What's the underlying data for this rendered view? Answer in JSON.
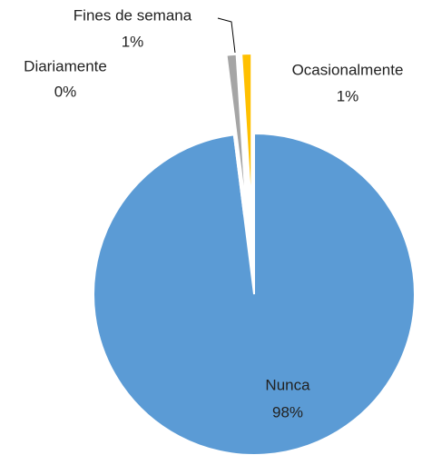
{
  "chart_data": {
    "type": "pie",
    "categories": [
      "Nunca",
      "Diariamente",
      "Fines de semana",
      "Ocasionalmente"
    ],
    "values": [
      98,
      0,
      1,
      1
    ],
    "value_labels": [
      "98%",
      "0%",
      "1%",
      "1%"
    ],
    "colors": [
      "#5b9bd5",
      "#ed7d31",
      "#a5a5a5",
      "#ffc000"
    ]
  }
}
